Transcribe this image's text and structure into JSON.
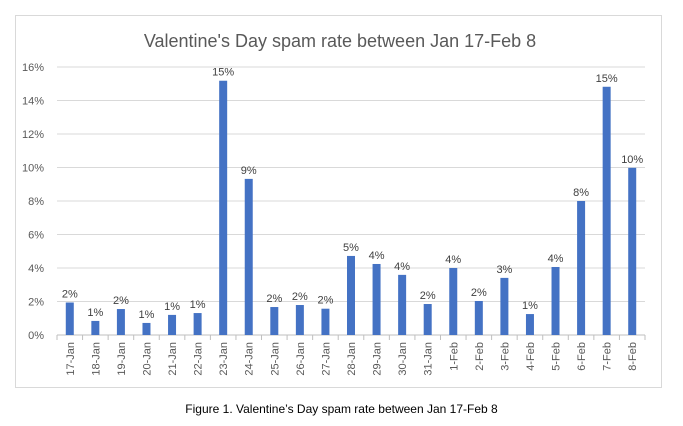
{
  "chart_data": {
    "type": "bar",
    "title": "Valentine's Day spam rate between Jan 17-Feb 8",
    "xlabel": "",
    "ylabel": "",
    "ylim": [
      0,
      16
    ],
    "yticks": [
      "0%",
      "2%",
      "4%",
      "6%",
      "8%",
      "10%",
      "12%",
      "14%",
      "16%"
    ],
    "grid": true,
    "legend": "none",
    "bar_color": "#4472c4",
    "categories": [
      "17-Jan",
      "18-Jan",
      "19-Jan",
      "20-Jan",
      "21-Jan",
      "22-Jan",
      "23-Jan",
      "24-Jan",
      "25-Jan",
      "26-Jan",
      "27-Jan",
      "28-Jan",
      "29-Jan",
      "30-Jan",
      "31-Jan",
      "1-Feb",
      "2-Feb",
      "3-Feb",
      "4-Feb",
      "5-Feb",
      "6-Feb",
      "7-Feb",
      "8-Feb"
    ],
    "values": [
      1.94,
      0.84,
      1.55,
      0.72,
      1.2,
      1.31,
      15.18,
      9.32,
      1.67,
      1.79,
      1.57,
      4.72,
      4.24,
      3.59,
      1.85,
      4.0,
      2.03,
      3.41,
      1.25,
      4.06,
      8.0,
      14.82,
      9.98
    ],
    "data_labels": [
      "2%",
      "1%",
      "2%",
      "1%",
      "1%",
      "1%",
      "15%",
      "9%",
      "2%",
      "2%",
      "2%",
      "5%",
      "4%",
      "4%",
      "2%",
      "4%",
      "2%",
      "3%",
      "1%",
      "4%",
      "8%",
      "15%",
      "10%"
    ]
  },
  "caption": "Figure 1. Valentine’s Day spam rate between Jan 17-Feb 8"
}
